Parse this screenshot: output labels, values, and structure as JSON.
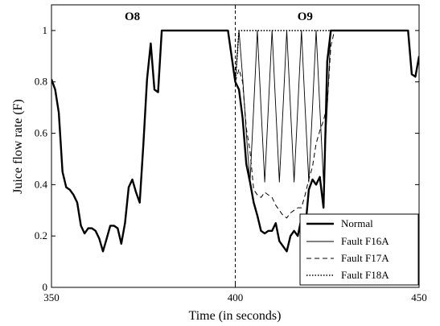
{
  "chart_data": {
    "type": "line",
    "title": "",
    "xlabel": "Time (in seconds)",
    "ylabel": "Juice flow rate (F)",
    "xlim": [
      350,
      450
    ],
    "ylim": [
      0,
      1.1
    ],
    "xticks": [
      350,
      400,
      450
    ],
    "yticks": [
      0,
      0.2,
      0.4,
      0.6,
      0.8,
      1
    ],
    "xtick_labels": [
      "350",
      "400",
      "450"
    ],
    "ytick_labels": [
      "0",
      "0.2",
      "0.4",
      "0.6",
      "0.8",
      "1"
    ],
    "grid": false,
    "legend_position": "bottom-right",
    "boundary_x": 400,
    "region_labels": [
      {
        "text": "O8",
        "x": 372,
        "y": 1.06
      },
      {
        "text": "O9",
        "x": 419,
        "y": 1.06
      }
    ],
    "series": [
      {
        "name": "Normal",
        "style": "solid-thick",
        "x": [
          350,
          351,
          352,
          353,
          354,
          355,
          356,
          357,
          358,
          359,
          360,
          361,
          362,
          363,
          364,
          365,
          366,
          367,
          368,
          369,
          370,
          371,
          372,
          373,
          374,
          375,
          376,
          377,
          378,
          379,
          380,
          381,
          382,
          383,
          384,
          385,
          386,
          387,
          388,
          389,
          390,
          391,
          392,
          393,
          394,
          395,
          396,
          397,
          398,
          399,
          400,
          401,
          402,
          403,
          404,
          405,
          406,
          407,
          408,
          409,
          410,
          411,
          412,
          413,
          414,
          415,
          416,
          417,
          418,
          419,
          420,
          421,
          422,
          423,
          424,
          425,
          426,
          427,
          428,
          429,
          430,
          431,
          432,
          433,
          434,
          435,
          436,
          437,
          438,
          439,
          440,
          441,
          442,
          443,
          444,
          445,
          446,
          447,
          448,
          449,
          450
        ],
        "y": [
          0.81,
          0.77,
          0.68,
          0.45,
          0.39,
          0.38,
          0.36,
          0.33,
          0.24,
          0.21,
          0.23,
          0.23,
          0.22,
          0.19,
          0.14,
          0.19,
          0.24,
          0.24,
          0.23,
          0.17,
          0.25,
          0.39,
          0.42,
          0.37,
          0.33,
          0.56,
          0.81,
          0.95,
          0.77,
          0.76,
          1.0,
          1.0,
          1.0,
          1.0,
          1.0,
          1.0,
          1.0,
          1.0,
          1.0,
          1.0,
          1.0,
          1.0,
          1.0,
          1.0,
          1.0,
          1.0,
          1.0,
          1.0,
          1.0,
          0.9,
          0.8,
          0.77,
          0.66,
          0.48,
          0.41,
          0.33,
          0.28,
          0.22,
          0.21,
          0.22,
          0.22,
          0.25,
          0.18,
          0.16,
          0.14,
          0.2,
          0.22,
          0.2,
          0.27,
          0.22,
          0.38,
          0.42,
          0.4,
          0.43,
          0.31,
          0.88,
          1.0,
          1.0,
          1.0,
          1.0,
          1.0,
          1.0,
          1.0,
          1.0,
          1.0,
          1.0,
          1.0,
          1.0,
          1.0,
          1.0,
          1.0,
          1.0,
          1.0,
          1.0,
          1.0,
          1.0,
          1.0,
          1.0,
          0.83,
          0.82,
          0.9
        ]
      },
      {
        "name": "Fault F16A",
        "style": "solid-thin",
        "x": [
          400,
          401,
          402,
          403,
          404,
          405,
          406,
          407,
          408,
          409,
          410,
          411,
          412,
          413,
          414,
          415,
          416,
          417,
          418,
          419,
          420,
          421,
          422,
          423,
          424,
          425,
          426,
          427
        ],
        "y": [
          0.8,
          1.0,
          0.82,
          0.6,
          0.41,
          0.7,
          1.0,
          0.7,
          0.41,
          0.7,
          1.0,
          0.7,
          0.41,
          0.7,
          1.0,
          0.7,
          0.41,
          0.7,
          1.0,
          0.7,
          0.41,
          0.7,
          1.0,
          0.7,
          0.41,
          0.7,
          1.0,
          1.0
        ]
      },
      {
        "name": "Fault F17A",
        "style": "dashed",
        "x": [
          400,
          401,
          402,
          403,
          404,
          405,
          406,
          407,
          408,
          409,
          410,
          411,
          412,
          413,
          414,
          415,
          416,
          417,
          418,
          419,
          420,
          421,
          422,
          423,
          424,
          425,
          426,
          427
        ],
        "y": [
          0.8,
          0.85,
          0.8,
          0.62,
          0.53,
          0.38,
          0.36,
          0.35,
          0.37,
          0.36,
          0.35,
          0.32,
          0.3,
          0.28,
          0.27,
          0.29,
          0.3,
          0.31,
          0.31,
          0.36,
          0.42,
          0.47,
          0.56,
          0.61,
          0.65,
          0.71,
          0.94,
          1.0
        ]
      },
      {
        "name": "Fault F18A",
        "style": "dotted",
        "x": [
          400,
          401,
          402,
          403,
          404,
          405,
          406,
          407,
          408,
          409,
          410,
          411,
          412,
          413,
          414,
          415,
          416,
          417,
          418,
          419,
          420,
          421,
          422,
          423,
          424,
          425,
          426,
          427
        ],
        "y": [
          0.8,
          1.0,
          1.0,
          1.0,
          1.0,
          1.0,
          1.0,
          1.0,
          1.0,
          1.0,
          1.0,
          1.0,
          1.0,
          1.0,
          1.0,
          1.0,
          1.0,
          1.0,
          1.0,
          1.0,
          1.0,
          1.0,
          1.0,
          1.0,
          1.0,
          1.0,
          1.0,
          1.0
        ]
      }
    ]
  }
}
